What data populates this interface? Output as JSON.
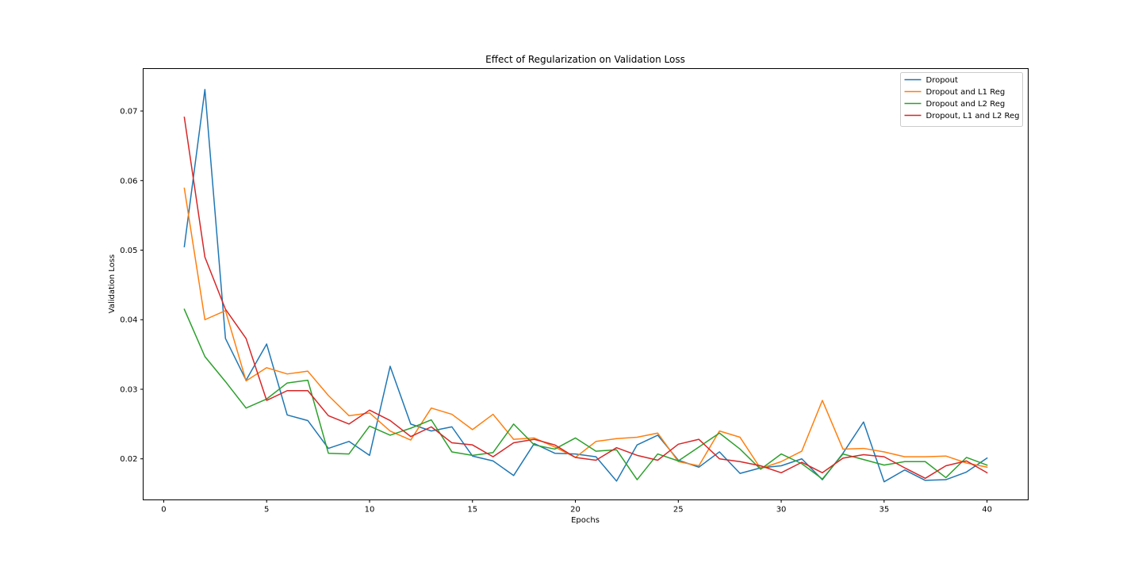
{
  "chart_data": {
    "type": "line",
    "title": "Effect of Regularization on Validation Loss",
    "xlabel": "Epochs",
    "ylabel": "Validation Loss",
    "xlim": [
      -1.0,
      42.0
    ],
    "ylim": [
      0.0141,
      0.0761
    ],
    "xticks": [
      0,
      5,
      10,
      15,
      20,
      25,
      30,
      35,
      40
    ],
    "xtick_labels": [
      "0",
      "5",
      "10",
      "15",
      "20",
      "25",
      "30",
      "35",
      "40"
    ],
    "yticks": [
      0.02,
      0.03,
      0.04,
      0.05,
      0.06,
      0.07
    ],
    "ytick_labels": [
      "0.02",
      "0.03",
      "0.04",
      "0.05",
      "0.06",
      "0.07"
    ],
    "grid": false,
    "legend_position": "top-right",
    "x": [
      1,
      2,
      3,
      4,
      5,
      6,
      7,
      8,
      9,
      10,
      11,
      12,
      13,
      14,
      15,
      16,
      17,
      18,
      19,
      20,
      21,
      22,
      23,
      24,
      25,
      26,
      27,
      28,
      29,
      30,
      31,
      32,
      33,
      34,
      35,
      36,
      37,
      38,
      39,
      40
    ],
    "series": [
      {
        "name": "Dropout",
        "color": "#1f77b4",
        "values": [
          0.0505,
          0.0731,
          0.0373,
          0.0313,
          0.0365,
          0.0263,
          0.0255,
          0.0215,
          0.0225,
          0.0205,
          0.0333,
          0.025,
          0.024,
          0.0246,
          0.0204,
          0.0197,
          0.0176,
          0.0222,
          0.0208,
          0.0207,
          0.0203,
          0.0168,
          0.022,
          0.0234,
          0.0198,
          0.0188,
          0.021,
          0.0179,
          0.0187,
          0.019,
          0.02,
          0.017,
          0.0208,
          0.0253,
          0.0167,
          0.0184,
          0.0169,
          0.017,
          0.0181,
          0.0201
        ]
      },
      {
        "name": "Dropout and L1 Reg",
        "color": "#ff7f0e",
        "values": [
          0.0589,
          0.04,
          0.0413,
          0.0312,
          0.0331,
          0.0322,
          0.0326,
          0.0291,
          0.0262,
          0.0266,
          0.024,
          0.0227,
          0.0273,
          0.0264,
          0.0242,
          0.0264,
          0.0228,
          0.023,
          0.0217,
          0.0202,
          0.0225,
          0.0229,
          0.0231,
          0.0237,
          0.0196,
          0.019,
          0.024,
          0.0231,
          0.0186,
          0.0196,
          0.0211,
          0.0284,
          0.0214,
          0.0215,
          0.021,
          0.0203,
          0.0203,
          0.0204,
          0.0194,
          0.0188
        ]
      },
      {
        "name": "Dropout and L2 Reg",
        "color": "#2ca02c",
        "values": [
          0.0415,
          0.0347,
          0.0311,
          0.0273,
          0.0286,
          0.0309,
          0.0313,
          0.0208,
          0.0207,
          0.0247,
          0.0234,
          0.0244,
          0.0256,
          0.021,
          0.0205,
          0.0209,
          0.025,
          0.022,
          0.0214,
          0.023,
          0.0211,
          0.0213,
          0.017,
          0.0207,
          0.0197,
          0.0217,
          0.0237,
          0.0214,
          0.0185,
          0.0207,
          0.0193,
          0.0171,
          0.0207,
          0.0199,
          0.0191,
          0.0196,
          0.0196,
          0.0173,
          0.0202,
          0.0191
        ]
      },
      {
        "name": "Dropout, L1 and L2 Reg",
        "color": "#d62728",
        "values": [
          0.0691,
          0.049,
          0.0415,
          0.0373,
          0.0284,
          0.0298,
          0.0298,
          0.0262,
          0.025,
          0.027,
          0.0255,
          0.0232,
          0.0246,
          0.0223,
          0.022,
          0.0203,
          0.0223,
          0.0228,
          0.022,
          0.0202,
          0.0198,
          0.0216,
          0.0205,
          0.0198,
          0.0221,
          0.0228,
          0.02,
          0.0196,
          0.019,
          0.018,
          0.0195,
          0.018,
          0.0201,
          0.0206,
          0.0203,
          0.0187,
          0.0172,
          0.019,
          0.0197,
          0.018
        ]
      }
    ]
  }
}
